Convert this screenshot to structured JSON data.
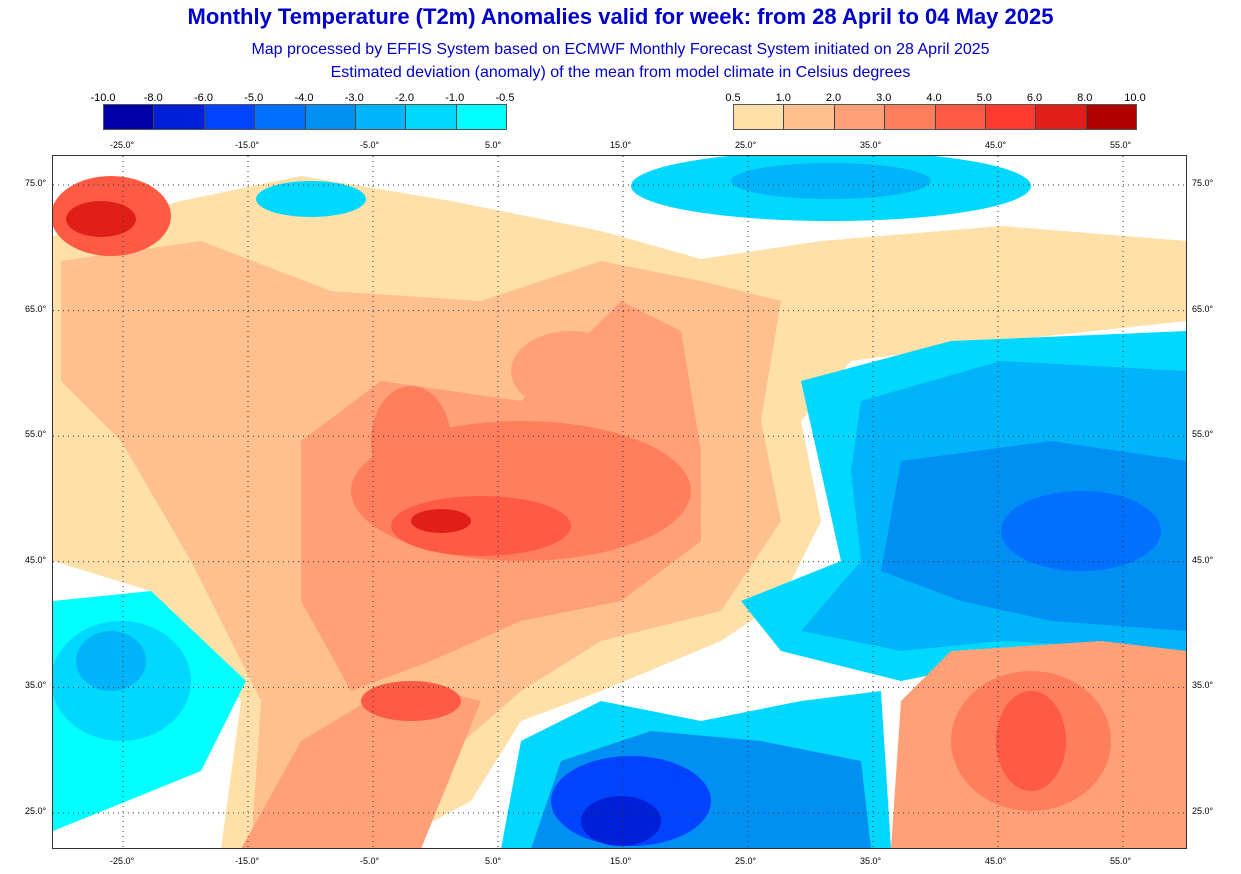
{
  "header": {
    "title": "Monthly Temperature (T2m) Anomalies valid for week: from 28 April to 04 May 2025",
    "subtitle1": "Map processed by EFFIS System based on ECMWF Monthly Forecast System initiated on 28 April 2025",
    "subtitle2": "Estimated deviation (anomaly) of the mean from model climate in Celsius degrees"
  },
  "legend_cold": {
    "labels": [
      "-10.0",
      "-8.0",
      "-6.0",
      "-5.0",
      "-4.0",
      "-3.0",
      "-2.0",
      "-1.0",
      "-0.5"
    ],
    "colors": [
      "#0000a8",
      "#0020d8",
      "#0044ff",
      "#0070ff",
      "#0090f4",
      "#00b4fa",
      "#00d8ff",
      "#00ffff"
    ]
  },
  "legend_warm": {
    "labels": [
      "0.5",
      "1.0",
      "2.0",
      "3.0",
      "4.0",
      "5.0",
      "6.0",
      "8.0",
      "10.0"
    ],
    "colors": [
      "#ffe0a8",
      "#ffc090",
      "#ffa078",
      "#ff7f5c",
      "#ff5a44",
      "#ff3a2e",
      "#e02018",
      "#b00000"
    ]
  },
  "axes": {
    "lon_labels": [
      "-25.0°",
      "-15.0°",
      "-5.0°",
      "5.0°",
      "15.0°",
      "25.0°",
      "35.0°",
      "45.0°",
      "55.0°"
    ],
    "lat_labels": [
      "75.0°",
      "65.0°",
      "55.0°",
      "45.0°",
      "35.0°",
      "25.0°"
    ]
  }
}
